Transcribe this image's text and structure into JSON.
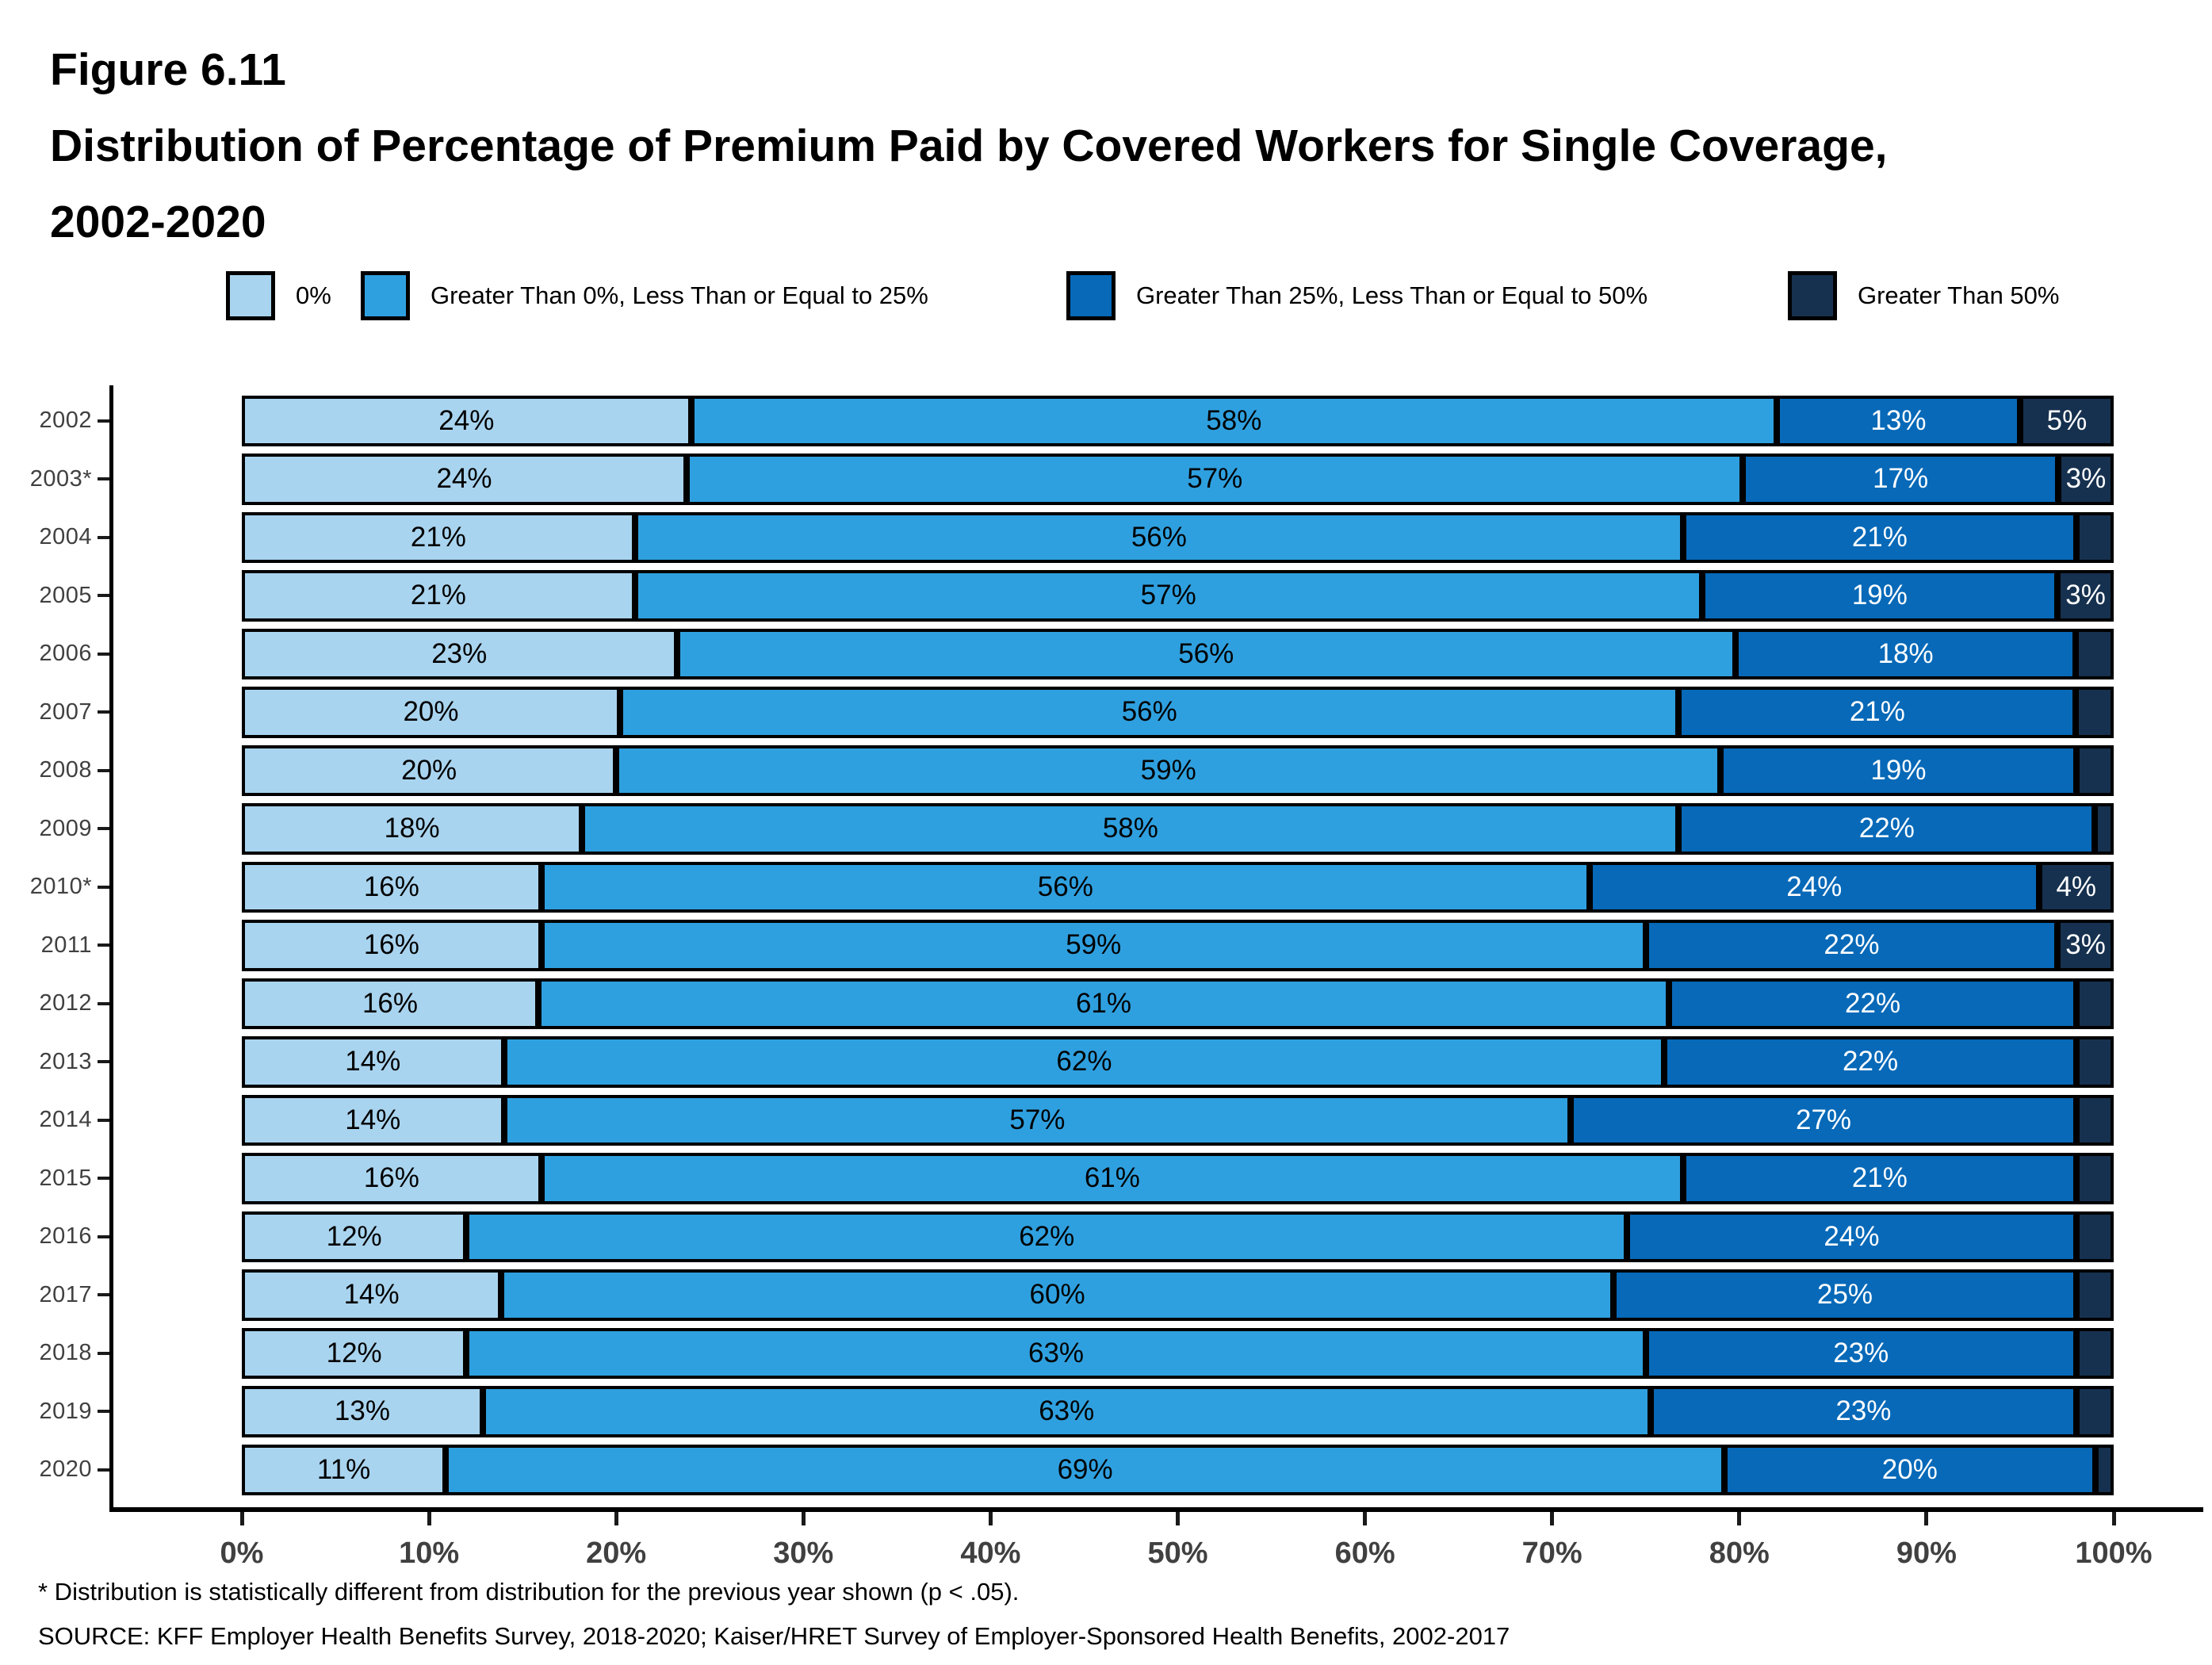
{
  "title": {
    "figure_label": "Figure 6.11",
    "line1": "Distribution of Percentage of Premium Paid by Covered Workers for Single Coverage,",
    "line2": "2002-2020"
  },
  "legend": {
    "items": [
      {
        "label": "0%",
        "color": "#A9D4EF"
      },
      {
        "label": "Greater Than 0%, Less Than or Equal to 25%",
        "color": "#2FA0DF"
      },
      {
        "label": "Greater Than 25%, Less Than or Equal to 50%",
        "color": "#0769B8"
      },
      {
        "label": "Greater Than 50%",
        "color": "#16314F"
      }
    ]
  },
  "chart_data": {
    "type": "bar",
    "orientation": "horizontal",
    "stacked": true,
    "title": "Distribution of Percentage of Premium Paid by Covered Workers for Single Coverage, 2002-2020",
    "xlabel": "",
    "ylabel": "",
    "xlim": [
      0,
      100
    ],
    "grid": false,
    "legend_position": "top",
    "x_ticks": [
      "0%",
      "10%",
      "20%",
      "30%",
      "40%",
      "50%",
      "60%",
      "70%",
      "80%",
      "90%",
      "100%"
    ],
    "categories": [
      "2002",
      "2003*",
      "2004",
      "2005",
      "2006",
      "2007",
      "2008",
      "2009",
      "2010*",
      "2011",
      "2012",
      "2013",
      "2014",
      "2015",
      "2016",
      "2017",
      "2018",
      "2019",
      "2020"
    ],
    "series": [
      {
        "name": "0%",
        "color": "#A9D4EF",
        "values": [
          24,
          24,
          21,
          21,
          23,
          20,
          20,
          18,
          16,
          16,
          16,
          14,
          14,
          16,
          12,
          14,
          12,
          13,
          11
        ]
      },
      {
        "name": "Greater Than 0%, Less Than or Equal to 25%",
        "color": "#2FA0DF",
        "values": [
          58,
          57,
          56,
          57,
          56,
          56,
          59,
          58,
          56,
          59,
          61,
          62,
          57,
          61,
          62,
          60,
          63,
          63,
          69
        ]
      },
      {
        "name": "Greater Than 25%, Less Than or Equal to 50%",
        "color": "#0769B8",
        "values": [
          13,
          17,
          21,
          19,
          18,
          21,
          19,
          22,
          24,
          22,
          22,
          22,
          27,
          21,
          24,
          25,
          23,
          23,
          20
        ]
      },
      {
        "name": "Greater Than 50%",
        "color": "#16314F",
        "values": [
          5,
          3,
          2,
          3,
          2,
          2,
          2,
          1,
          4,
          3,
          2,
          2,
          2,
          2,
          2,
          2,
          2,
          2,
          1
        ]
      }
    ],
    "segment_labels": [
      [
        "24%",
        "58%",
        "13%",
        "5%"
      ],
      [
        "24%",
        "57%",
        "17%",
        "3%"
      ],
      [
        "21%",
        "56%",
        "21%",
        ""
      ],
      [
        "21%",
        "57%",
        "19%",
        "3%"
      ],
      [
        "23%",
        "56%",
        "18%",
        ""
      ],
      [
        "20%",
        "56%",
        "21%",
        ""
      ],
      [
        "20%",
        "59%",
        "19%",
        ""
      ],
      [
        "18%",
        "58%",
        "22%",
        ""
      ],
      [
        "16%",
        "56%",
        "24%",
        "4%"
      ],
      [
        "16%",
        "59%",
        "22%",
        "3%"
      ],
      [
        "16%",
        "61%",
        "22%",
        ""
      ],
      [
        "14%",
        "62%",
        "22%",
        ""
      ],
      [
        "14%",
        "57%",
        "27%",
        ""
      ],
      [
        "16%",
        "61%",
        "21%",
        ""
      ],
      [
        "12%",
        "62%",
        "24%",
        ""
      ],
      [
        "14%",
        "60%",
        "25%",
        ""
      ],
      [
        "12%",
        "63%",
        "23%",
        ""
      ],
      [
        "13%",
        "63%",
        "23%",
        ""
      ],
      [
        "11%",
        "69%",
        "20%",
        ""
      ]
    ],
    "segment_text_colors": [
      "#000000",
      "#000000",
      "#ffffff",
      "#ffffff"
    ]
  },
  "footnotes": {
    "asterisk": "* Distribution is statistically different from distribution for the previous year shown (p < .05).",
    "source": "SOURCE: KFF Employer Health Benefits Survey, 2018-2020; Kaiser/HRET Survey of Employer-Sponsored Health Benefits, 2002-2017"
  }
}
